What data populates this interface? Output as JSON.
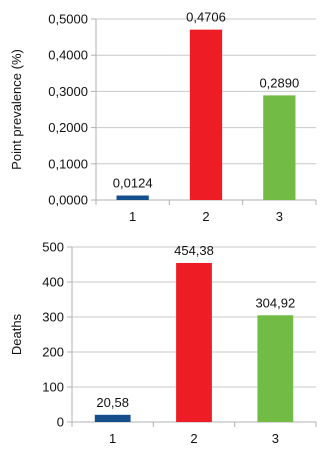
{
  "chart_data": [
    {
      "type": "bar",
      "categories": [
        "1",
        "2",
        "3"
      ],
      "values": [
        0.0124,
        0.4706,
        0.289
      ],
      "data_labels": [
        "0,0124",
        "0,4706",
        "0,2890"
      ],
      "colors": [
        "#144f8c",
        "#ee1c25",
        "#72bb44"
      ],
      "title": "",
      "xlabel": "",
      "ylabel": "Point prevalence (%)",
      "ylim": [
        0,
        0.5
      ],
      "yticks": [
        0,
        0.1,
        0.2,
        0.3,
        0.4,
        0.5
      ],
      "ytick_labels": [
        "0,0000",
        "0,1000",
        "0,2000",
        "0,3000",
        "0,4000",
        "0,5000"
      ],
      "grid": true,
      "legend": "none"
    },
    {
      "type": "bar",
      "categories": [
        "1",
        "2",
        "3"
      ],
      "values": [
        20.58,
        454.38,
        304.92
      ],
      "data_labels": [
        "20,58",
        "454,38",
        "304,92"
      ],
      "colors": [
        "#144f8c",
        "#ee1c25",
        "#72bb44"
      ],
      "title": "",
      "xlabel": "",
      "ylabel": "Deaths",
      "ylim": [
        0,
        500
      ],
      "yticks": [
        0,
        100,
        200,
        300,
        400,
        500
      ],
      "ytick_labels": [
        "0",
        "100",
        "200",
        "300",
        "400",
        "500"
      ],
      "grid": true,
      "legend": "none"
    }
  ]
}
